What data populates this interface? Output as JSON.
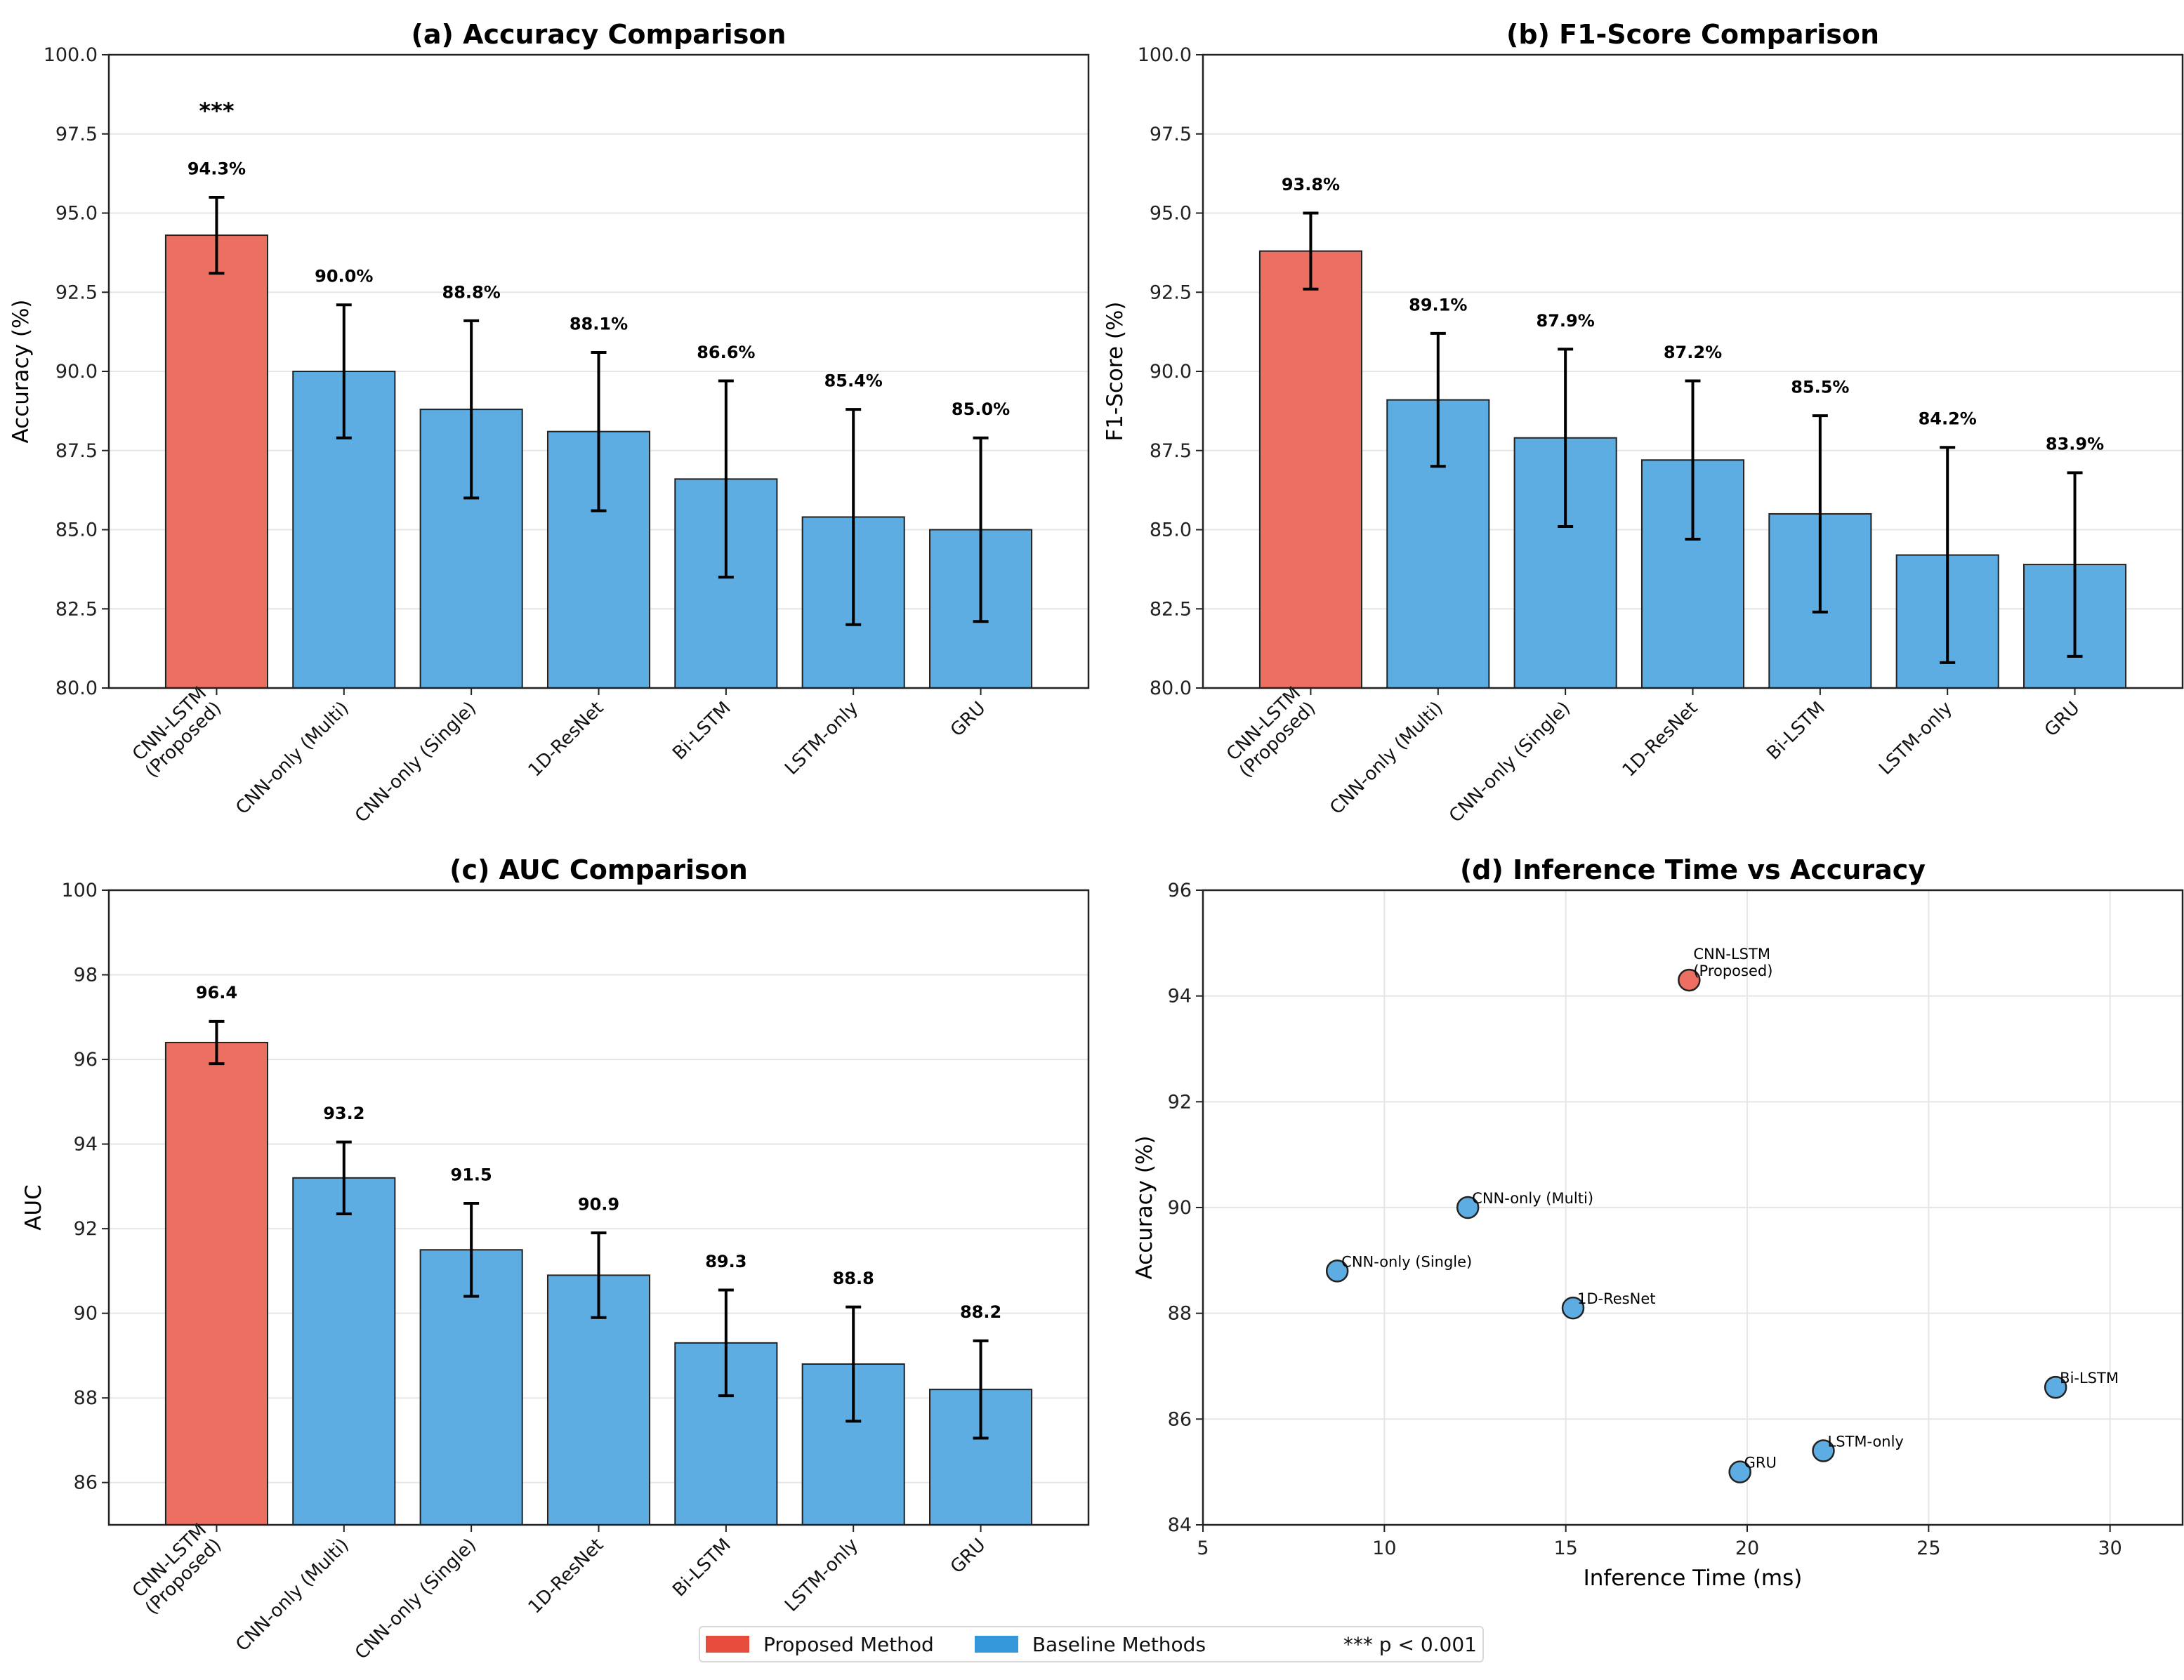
{
  "colors": {
    "proposed": "#ec6f61",
    "baseline": "#5dade2",
    "proposed_legend": "#e74c3c",
    "baseline_legend": "#3498db",
    "edge": "#222222",
    "grid": "#e6e6e6"
  },
  "legend": {
    "items": [
      {
        "label": "Proposed Method",
        "color": "#e74c3c"
      },
      {
        "label": "Baseline Methods",
        "color": "#3498db"
      }
    ],
    "note": "*** p < 0.001",
    "placement": "bottom-center"
  },
  "chart_data": [
    {
      "id": "a",
      "type": "bar",
      "title": "(a) Accuracy Comparison",
      "xlabel": "",
      "ylabel": "Accuracy (%)",
      "ylim": [
        80,
        100
      ],
      "yticks": [
        "80.0",
        "82.5",
        "85.0",
        "87.5",
        "90.0",
        "92.5",
        "95.0",
        "97.5",
        "100.0"
      ],
      "ytick_values": [
        80,
        82.5,
        85,
        87.5,
        90,
        92.5,
        95,
        97.5,
        100
      ],
      "grid": "y",
      "categories": [
        "CNN-LSTM\n(Proposed)",
        "CNN-only (Multi)",
        "CNN-only (Single)",
        "1D-ResNet",
        "Bi-LSTM",
        "LSTM-only",
        "GRU"
      ],
      "values": [
        94.3,
        90.0,
        88.8,
        88.1,
        86.6,
        85.4,
        85.0
      ],
      "errors": [
        1.2,
        2.1,
        2.8,
        2.5,
        3.1,
        3.4,
        2.9
      ],
      "value_labels": [
        "94.3%",
        "90.0%",
        "88.8%",
        "88.1%",
        "86.6%",
        "85.4%",
        "85.0%"
      ],
      "highlight_index": 0,
      "annotation": {
        "text": "***",
        "index": 0
      }
    },
    {
      "id": "b",
      "type": "bar",
      "title": "(b) F1-Score Comparison",
      "xlabel": "",
      "ylabel": "F1-Score (%)",
      "ylim": [
        80,
        100
      ],
      "yticks": [
        "80.0",
        "82.5",
        "85.0",
        "87.5",
        "90.0",
        "92.5",
        "95.0",
        "97.5",
        "100.0"
      ],
      "ytick_values": [
        80,
        82.5,
        85,
        87.5,
        90,
        92.5,
        95,
        97.5,
        100
      ],
      "grid": "y",
      "categories": [
        "CNN-LSTM\n(Proposed)",
        "CNN-only (Multi)",
        "CNN-only (Single)",
        "1D-ResNet",
        "Bi-LSTM",
        "LSTM-only",
        "GRU"
      ],
      "values": [
        93.8,
        89.1,
        87.9,
        87.2,
        85.5,
        84.2,
        83.9
      ],
      "errors": [
        1.2,
        2.1,
        2.8,
        2.5,
        3.1,
        3.4,
        2.9
      ],
      "value_labels": [
        "93.8%",
        "89.1%",
        "87.9%",
        "87.2%",
        "85.5%",
        "84.2%",
        "83.9%"
      ],
      "highlight_index": 0
    },
    {
      "id": "c",
      "type": "bar",
      "title": "(c) AUC Comparison",
      "xlabel": "",
      "ylabel": "AUC",
      "ylim": [
        85,
        100
      ],
      "yticks": [
        "86",
        "88",
        "90",
        "92",
        "94",
        "96",
        "98",
        "100"
      ],
      "ytick_values": [
        86,
        88,
        90,
        92,
        94,
        96,
        98,
        100
      ],
      "grid": "y",
      "categories": [
        "CNN-LSTM\n(Proposed)",
        "CNN-only (Multi)",
        "CNN-only (Single)",
        "1D-ResNet",
        "Bi-LSTM",
        "LSTM-only",
        "GRU"
      ],
      "values": [
        96.4,
        93.2,
        91.5,
        90.9,
        89.3,
        88.8,
        88.2
      ],
      "errors": [
        0.5,
        0.85,
        1.1,
        1.0,
        1.25,
        1.35,
        1.15
      ],
      "value_labels": [
        "96.4",
        "93.2",
        "91.5",
        "90.9",
        "89.3",
        "88.8",
        "88.2"
      ],
      "highlight_index": 0
    },
    {
      "id": "d",
      "type": "scatter",
      "title": "(d) Inference Time vs Accuracy",
      "xlabel": "Inference Time (ms)",
      "ylabel": "Accuracy (%)",
      "xlim": [
        5,
        32
      ],
      "ylim": [
        84,
        96
      ],
      "xticks": [
        "5",
        "10",
        "15",
        "20",
        "25",
        "30"
      ],
      "xtick_values": [
        5,
        10,
        15,
        20,
        25,
        30
      ],
      "yticks": [
        "84",
        "86",
        "88",
        "90",
        "92",
        "94",
        "96"
      ],
      "ytick_values": [
        84,
        86,
        88,
        90,
        92,
        94,
        96
      ],
      "grid": "both",
      "points": [
        {
          "label": "CNN-LSTM\n(Proposed)",
          "x": 18.4,
          "y": 94.3,
          "proposed": true
        },
        {
          "label": "CNN-only (Multi)",
          "x": 12.3,
          "y": 90.0,
          "proposed": false
        },
        {
          "label": "CNN-only (Single)",
          "x": 8.7,
          "y": 88.8,
          "proposed": false
        },
        {
          "label": "1D-ResNet",
          "x": 15.2,
          "y": 88.1,
          "proposed": false
        },
        {
          "label": "Bi-LSTM",
          "x": 28.5,
          "y": 86.6,
          "proposed": false
        },
        {
          "label": "LSTM-only",
          "x": 22.1,
          "y": 85.4,
          "proposed": false
        },
        {
          "label": "GRU",
          "x": 19.8,
          "y": 85.0,
          "proposed": false
        }
      ]
    }
  ]
}
